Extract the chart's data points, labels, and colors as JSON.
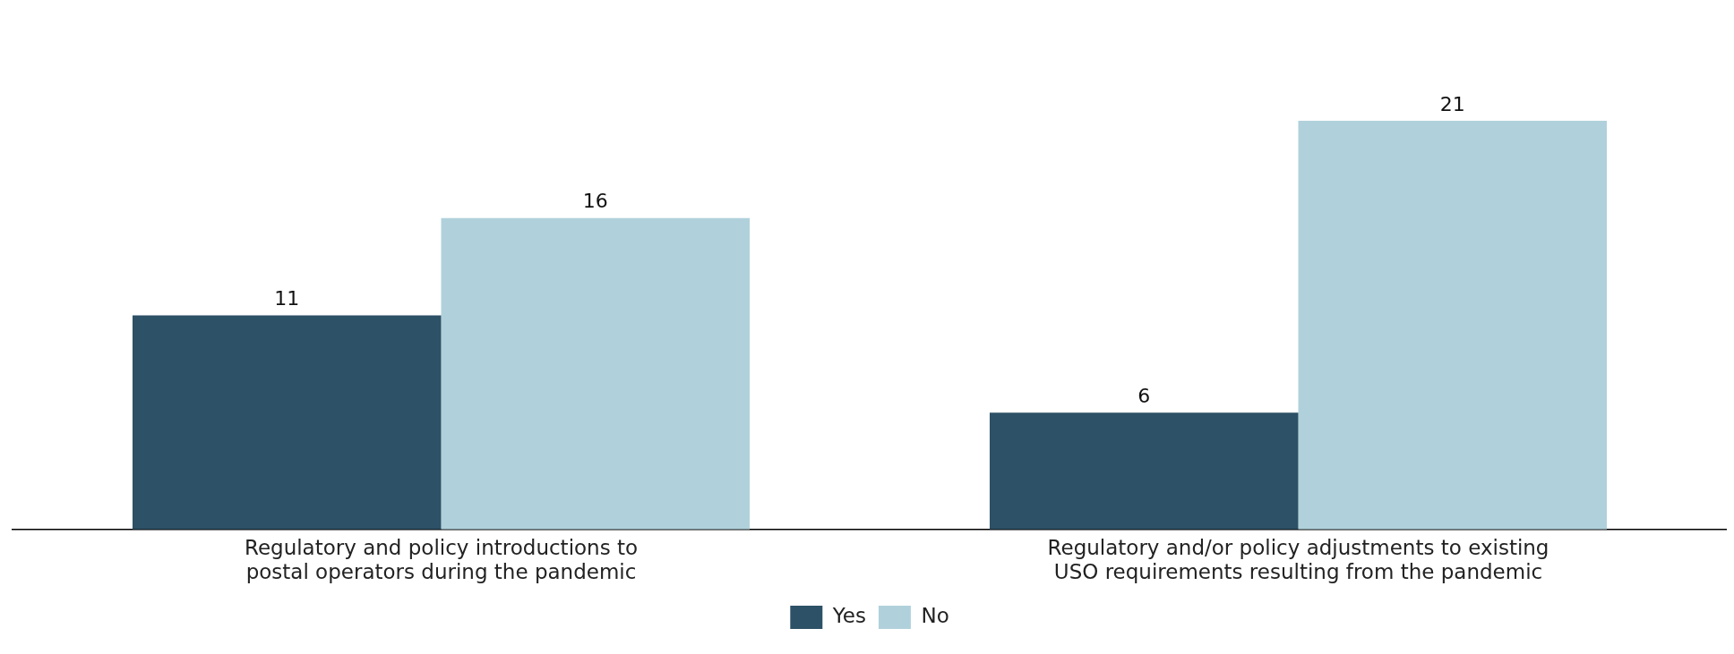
{
  "chart_data": {
    "type": "bar",
    "categories": [
      "Regulatory and policy introductions to postal operators during the pandemic",
      "Regulatory and/or policy adjustments to existing USO requirements resulting from the pandemic"
    ],
    "series": [
      {
        "name": "Yes",
        "color": "#2d5166",
        "values": [
          11,
          6
        ]
      },
      {
        "name": "No",
        "color": "#b0d1db",
        "values": [
          16,
          21
        ]
      }
    ],
    "data_labels": true,
    "legend": "bottom",
    "grid": false
  }
}
